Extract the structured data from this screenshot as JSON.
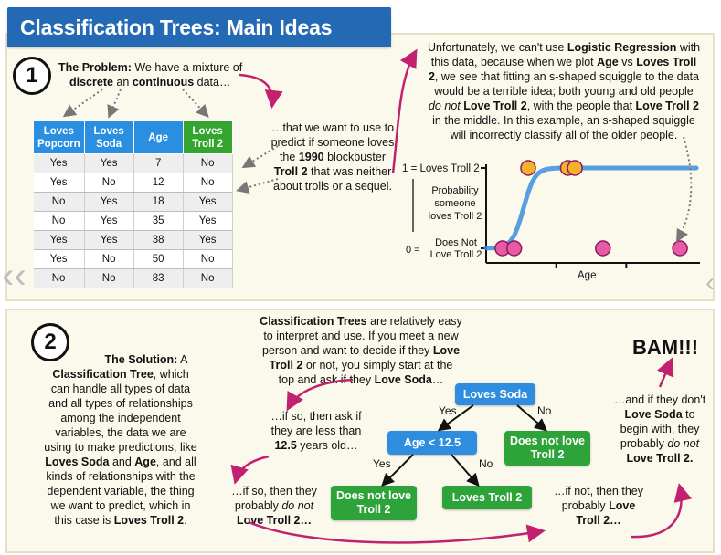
{
  "title": "Classification Trees: Main Ideas",
  "section1": {
    "number": "1",
    "problem_bold": "The Problem:",
    "problem_text_1": " We have a mixture of",
    "problem_discrete": "discrete",
    "problem_text_2": " an ",
    "problem_continuous": "continuous",
    "problem_text_3": " data…",
    "predict_1": "…that we want to use to",
    "predict_2": "predict if someone loves",
    "predict_3a": "the ",
    "predict_3b": "1990",
    "predict_3c": " blockbuster",
    "predict_4a": "Troll 2",
    "predict_4b": " that was neither",
    "predict_5": "about trolls or a sequel.",
    "table": {
      "headers": [
        "Loves Popcorn",
        "Loves Soda",
        "Age",
        "Loves Troll 2"
      ],
      "rows": [
        [
          "Yes",
          "Yes",
          "7",
          "No"
        ],
        [
          "Yes",
          "No",
          "12",
          "No"
        ],
        [
          "No",
          "Yes",
          "18",
          "Yes"
        ],
        [
          "No",
          "Yes",
          "35",
          "Yes"
        ],
        [
          "Yes",
          "Yes",
          "38",
          "Yes"
        ],
        [
          "Yes",
          "No",
          "50",
          "No"
        ],
        [
          "No",
          "No",
          "83",
          "No"
        ]
      ]
    },
    "logistic": {
      "l1a": "Unfortunately, we can't use ",
      "l1b": "Logistic Regression",
      "l1c": " with",
      "l2a": "this data, because when we plot ",
      "l2b": "Age",
      "l2c": " vs ",
      "l2d": "Loves Troll",
      "l3a": "2",
      "l3b": ", we see that fitting an s-shaped squiggle to the data",
      "l4": "would be a terrible idea; both young and old people",
      "l5a": "do not",
      "l5b": " ",
      "l5c": "Love Troll 2",
      "l5d": ", with the people that ",
      "l5e": "Love Troll 2",
      "l6": "in the middle. In this example, an s-shaped squiggle",
      "l7": "will incorrectly classify all of the older people."
    },
    "chart_labels": {
      "y_top": "1 = Loves Troll 2",
      "y_mid_1": "Probability",
      "y_mid_2": "someone",
      "y_mid_3": "loves Troll 2",
      "y_bottom_1": "0 =",
      "y_bottom_2": "Does Not",
      "y_bottom_3": "Love Troll 2",
      "x_label": "Age"
    }
  },
  "chart_data": {
    "type": "scatter",
    "title": "",
    "xlabel": "Age",
    "ylabel": "Probability someone loves Troll 2",
    "yticks": [
      "0 = Does Not Love Troll 2",
      "1 = Loves Troll 2"
    ],
    "xlim": [
      0,
      90
    ],
    "ylim": [
      0,
      1
    ],
    "series": [
      {
        "name": "Loves Troll 2",
        "color": "#f5b12a",
        "points": [
          [
            18,
            1
          ],
          [
            35,
            1
          ],
          [
            38,
            1
          ]
        ]
      },
      {
        "name": "Does Not Love Troll 2",
        "color": "#e85aa6",
        "points": [
          [
            7,
            0
          ],
          [
            12,
            0
          ],
          [
            50,
            0
          ],
          [
            83,
            0
          ]
        ]
      }
    ],
    "curve": {
      "type": "s-shaped squiggle",
      "color": "#3a8fdc"
    },
    "grid": false
  },
  "section2": {
    "number": "2",
    "sol_1": "The Solution:",
    "sol_1b": " A",
    "sol_2": "Classification Tree",
    "sol_2b": ", which",
    "sol_3": "can handle all types of data",
    "sol_4": "and all types of relationships",
    "sol_5": "among the independent",
    "sol_6": "variables, the data we are",
    "sol_7": "using to make predictions, like",
    "sol_8a": "Loves Soda",
    "sol_8b": " and ",
    "sol_8c": "Age",
    "sol_8d": ", and all",
    "sol_9": "kinds of relationships with the",
    "sol_10": "dependent variable, the thing",
    "sol_11": "we want to predict, which in",
    "sol_12a": "this case is ",
    "sol_12b": "Loves Troll 2",
    "sol_12c": ".",
    "top_1a": "Classification Trees",
    "top_1b": " are relatively easy",
    "top_2": "to interpret and use. If you meet a new",
    "top_3a": "person and want to decide if they ",
    "top_3b": "Love",
    "top_4a": "Troll 2",
    "top_4b": " or not, you simply start at the",
    "top_5a": "top and ask if they ",
    "top_5b": "Love Soda",
    "top_5c": "…",
    "ifso_1": "…if so, then ask if",
    "ifso_2": "they are less than",
    "ifso_3a": "12.5",
    "ifso_3b": " years old…",
    "ifso2_1": "…if so, then they",
    "ifso2_2a": "probably ",
    "ifso2_2b": "do not",
    "ifso2_3": "Love Troll 2…",
    "ifnot_1": "…if not, then they",
    "ifnot_2a": "probably ",
    "ifnot_2b": "Love",
    "ifnot_3": "Troll 2…",
    "dont_1": "…and if they don't",
    "dont_2a": "Love Soda",
    "dont_2b": " to",
    "dont_3": "begin with, they",
    "dont_4a": "probably ",
    "dont_4b": "do not",
    "dont_5": "Love Troll 2.",
    "bam": "BAM!!!",
    "tree": {
      "root": "Loves Soda",
      "age_node": "Age < 12.5",
      "left_leaf": "Does not love Troll 2",
      "mid_leaf": "Loves Troll 2",
      "right_leaf": "Does not love Troll 2",
      "yes_1": "Yes",
      "no_1": "No",
      "yes_2": "Yes",
      "no_2": "No"
    }
  },
  "nav": {
    "prev": "‹‹",
    "next": "‹"
  }
}
